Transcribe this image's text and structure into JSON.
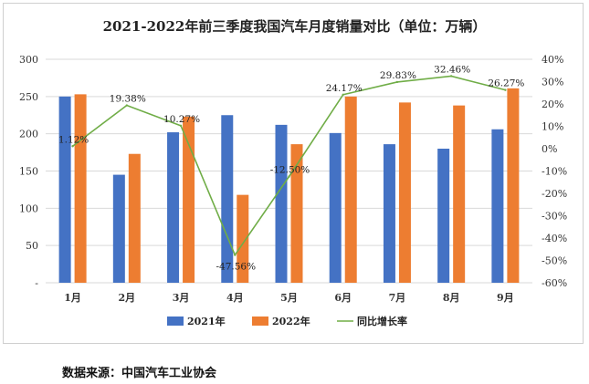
{
  "chart_data": {
    "type": "bar",
    "title": "2021-2022年前三季度我国汽车月度销量对比（单位：万辆）",
    "categories": [
      "1月",
      "2月",
      "3月",
      "4月",
      "5月",
      "6月",
      "7月",
      "8月",
      "9月"
    ],
    "series": [
      {
        "name": "2021年",
        "type": "bar",
        "color": "#4472C4",
        "axis": "left",
        "values": [
          250,
          145,
          202,
          225,
          212,
          201,
          186,
          180,
          206
        ]
      },
      {
        "name": "2022年",
        "type": "bar",
        "color": "#ED7D31",
        "axis": "left",
        "values": [
          253,
          173,
          223,
          118,
          186,
          250,
          242,
          238,
          261
        ]
      },
      {
        "name": "同比增长率",
        "type": "line",
        "color": "#70AD47",
        "axis": "right",
        "values": [
          1.12,
          19.38,
          10.27,
          -47.56,
          -12.5,
          24.17,
          29.83,
          32.46,
          26.27
        ],
        "labels": [
          "1.12%",
          "19.38%",
          "10.27%",
          "-47.56%",
          "-12.50%",
          "24.17%",
          "29.83%",
          "32.46%",
          "26.27%"
        ]
      }
    ],
    "ylim_left": [
      0,
      300
    ],
    "yticks_left": [
      "-",
      "50",
      "100",
      "150",
      "200",
      "250",
      "300"
    ],
    "ylim_right": [
      -60,
      40
    ],
    "yticks_right": [
      "-60%",
      "-50%",
      "-40%",
      "-30%",
      "-20%",
      "-10%",
      "0%",
      "10%",
      "20%",
      "30%",
      "40%"
    ],
    "grid": true,
    "legend": "bottom"
  },
  "source_note": "数据来源：中国汽车工业协会"
}
